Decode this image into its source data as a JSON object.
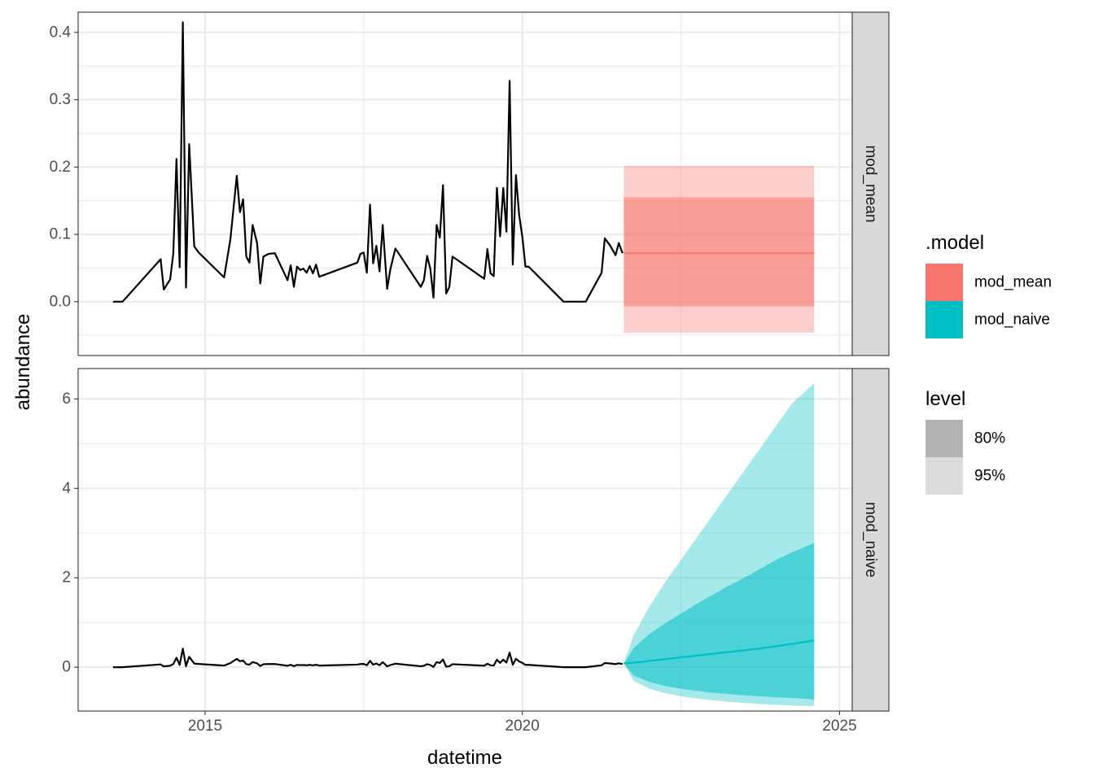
{
  "chart_data": {
    "type": "line",
    "xlabel": "datetime",
    "ylabel": "abundance",
    "x_ticks": [
      "2015",
      "2020",
      "2025"
    ],
    "xlim": [
      2013.0,
      2025.2
    ],
    "grid": true,
    "legend_placement": "right",
    "colors": {
      "mod_mean": "#F8766D",
      "mod_naive": "#00BFC4",
      "observed": "#000000",
      "strip_bg": "#D9D9D9"
    },
    "observed": {
      "x": [
        2013.55,
        2013.7,
        2014.3,
        2014.35,
        2014.45,
        2014.5,
        2014.55,
        2014.6,
        2014.65,
        2014.7,
        2014.75,
        2014.83,
        2014.9,
        2015.3,
        2015.4,
        2015.5,
        2015.55,
        2015.6,
        2015.65,
        2015.7,
        2015.75,
        2015.82,
        2015.87,
        2015.92,
        2016.0,
        2016.1,
        2016.3,
        2016.35,
        2016.4,
        2016.45,
        2016.5,
        2016.55,
        2016.6,
        2016.65,
        2016.7,
        2016.75,
        2016.8,
        2017.4,
        2017.45,
        2017.5,
        2017.55,
        2017.6,
        2017.65,
        2017.7,
        2017.75,
        2017.8,
        2017.87,
        2017.92,
        2018.0,
        2018.4,
        2018.45,
        2018.5,
        2018.55,
        2018.6,
        2018.65,
        2018.7,
        2018.75,
        2018.8,
        2018.85,
        2018.9,
        2019.4,
        2019.45,
        2019.5,
        2019.55,
        2019.6,
        2019.65,
        2019.7,
        2019.75,
        2019.8,
        2019.85,
        2019.9,
        2019.95,
        2020.0,
        2020.05,
        2020.1,
        2020.65,
        2021.0,
        2021.25,
        2021.3,
        2021.38,
        2021.47,
        2021.52,
        2021.58
      ],
      "values": [
        0.0,
        0.0,
        0.063,
        0.018,
        0.033,
        0.072,
        0.212,
        0.051,
        0.415,
        0.021,
        0.234,
        0.082,
        0.073,
        0.036,
        0.093,
        0.187,
        0.133,
        0.152,
        0.067,
        0.058,
        0.114,
        0.087,
        0.027,
        0.067,
        0.071,
        0.072,
        0.032,
        0.054,
        0.022,
        0.052,
        0.047,
        0.049,
        0.043,
        0.053,
        0.042,
        0.055,
        0.037,
        0.058,
        0.071,
        0.073,
        0.043,
        0.144,
        0.057,
        0.083,
        0.045,
        0.114,
        0.019,
        0.048,
        0.079,
        0.022,
        0.032,
        0.068,
        0.049,
        0.006,
        0.114,
        0.095,
        0.173,
        0.012,
        0.022,
        0.067,
        0.034,
        0.078,
        0.042,
        0.038,
        0.169,
        0.097,
        0.169,
        0.104,
        0.328,
        0.055,
        0.188,
        0.129,
        0.097,
        0.052,
        0.052,
        0.0,
        0.0,
        0.043,
        0.094,
        0.084,
        0.069,
        0.087,
        0.072
      ]
    },
    "panels": [
      {
        "strip": "mod_mean",
        "ylim": [
          -0.08,
          0.43
        ],
        "y_ticks": [
          0.0,
          0.1,
          0.2,
          0.3,
          0.4
        ],
        "y_tick_labels": [
          "0.0",
          "0.1",
          "0.2",
          "0.3",
          "0.4"
        ],
        "forecast": {
          "x": [
            2021.6,
            2024.6
          ],
          "mean": [
            0.072,
            0.072
          ],
          "lo80": [
            -0.007,
            -0.007
          ],
          "hi80": [
            0.155,
            0.155
          ],
          "lo95": [
            -0.046,
            -0.046
          ],
          "hi95": [
            0.202,
            0.202
          ]
        }
      },
      {
        "strip": "mod_naive",
        "ylim": [
          -0.98,
          6.68
        ],
        "y_ticks": [
          0,
          2,
          4,
          6
        ],
        "y_tick_labels": [
          "0",
          "2",
          "4",
          "6"
        ],
        "forecast": {
          "x": [
            2021.6,
            2021.75,
            2022.0,
            2022.25,
            2022.5,
            2022.75,
            2023.0,
            2023.25,
            2023.5,
            2023.75,
            2024.0,
            2024.25,
            2024.6
          ],
          "mean": [
            0.085,
            0.1,
            0.14,
            0.18,
            0.22,
            0.26,
            0.3,
            0.34,
            0.38,
            0.42,
            0.47,
            0.52,
            0.6
          ],
          "lo80": [
            0.085,
            -0.18,
            -0.33,
            -0.42,
            -0.48,
            -0.53,
            -0.57,
            -0.6,
            -0.63,
            -0.65,
            -0.67,
            -0.69,
            -0.72
          ],
          "hi80": [
            0.085,
            0.42,
            0.74,
            0.98,
            1.2,
            1.42,
            1.62,
            1.82,
            2.0,
            2.2,
            2.4,
            2.57,
            2.78
          ],
          "lo95": [
            0.085,
            -0.3,
            -0.48,
            -0.58,
            -0.65,
            -0.7,
            -0.74,
            -0.77,
            -0.8,
            -0.82,
            -0.84,
            -0.86,
            -0.87
          ],
          "hi95": [
            0.085,
            0.7,
            1.35,
            1.9,
            2.4,
            2.9,
            3.4,
            3.9,
            4.4,
            4.9,
            5.4,
            5.9,
            6.35
          ]
        }
      }
    ],
    "legends": [
      {
        "title": ".model",
        "items": [
          "mod_mean",
          "mod_naive"
        ]
      },
      {
        "title": "level",
        "items": [
          "80%",
          "95%"
        ]
      }
    ]
  }
}
